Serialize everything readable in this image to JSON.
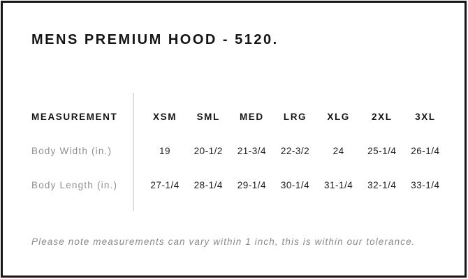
{
  "title": "MENS PREMIUM HOOD - 5120.",
  "table": {
    "measurement_header": "MEASUREMENT",
    "size_headers": [
      "XSM",
      "SML",
      "MED",
      "LRG",
      "XLG",
      "2XL",
      "3XL"
    ],
    "rows": [
      {
        "label": "Body Width (in.)",
        "values": [
          "19",
          "20-1/2",
          "21-3/4",
          "22-3/2",
          "24",
          "25-1/4",
          "26-1/4"
        ]
      },
      {
        "label": "Body Length (in.)",
        "values": [
          "27-1/4",
          "28-1/4",
          "29-1/4",
          "30-1/4",
          "31-1/4",
          "32-1/4",
          "33-1/4"
        ]
      }
    ]
  },
  "note": "Please note measurements can vary within 1 inch, this is within our tolerance.",
  "colors": {
    "border": "#161616",
    "text": "#1a1a1a",
    "muted_label": "#8f8f8f",
    "note_gray": "#8a8a8a",
    "divider": "#dedede",
    "background": "#ffffff"
  },
  "chart_data": {
    "type": "table",
    "title": "MENS PREMIUM HOOD - 5120.",
    "columns": [
      "MEASUREMENT",
      "XSM",
      "SML",
      "MED",
      "LRG",
      "XLG",
      "2XL",
      "3XL"
    ],
    "rows": [
      [
        "Body Width (in.)",
        "19",
        "20-1/2",
        "21-3/4",
        "22-3/2",
        "24",
        "25-1/4",
        "26-1/4"
      ],
      [
        "Body Length (in.)",
        "27-1/4",
        "28-1/4",
        "29-1/4",
        "30-1/4",
        "31-1/4",
        "32-1/4",
        "33-1/4"
      ]
    ],
    "note": "Please note measurements can vary within 1 inch, this is within our tolerance.",
    "layout": {
      "label_column_divider": true,
      "grid": "off",
      "units": "inches"
    }
  }
}
